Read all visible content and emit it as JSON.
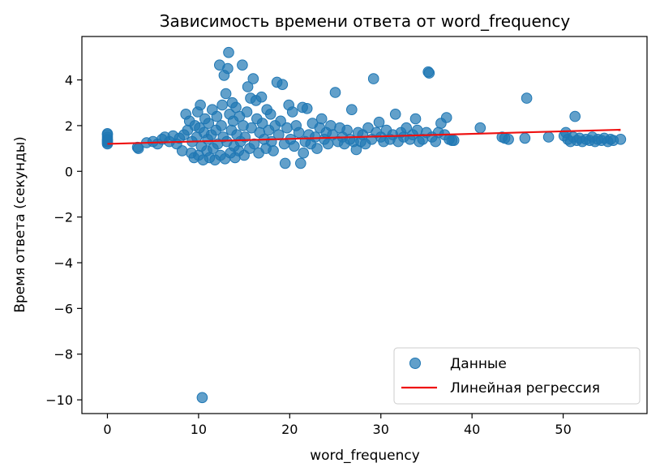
{
  "chart_data": {
    "type": "scatter",
    "title": "Зависимость времени ответа от word_frequency",
    "xlabel": "word_frequency",
    "ylabel": "Время ответа (секунды)",
    "xlim": [
      -2.8,
      59.2
    ],
    "ylim": [
      -10.6,
      5.9
    ],
    "xticks": [
      0,
      10,
      20,
      30,
      40,
      50
    ],
    "yticks": [
      -10,
      -8,
      -6,
      -4,
      -2,
      0,
      2,
      4
    ],
    "grid": false,
    "legend_position": "bottom-right",
    "series": [
      {
        "name": "Данные",
        "kind": "scatter",
        "color": "#1f77b4",
        "points": [
          [
            0,
            1.2
          ],
          [
            0,
            1.3
          ],
          [
            0,
            1.4
          ],
          [
            0,
            1.5
          ],
          [
            0,
            1.6
          ],
          [
            0,
            1.65
          ],
          [
            0,
            1.25
          ],
          [
            0,
            1.35
          ],
          [
            3.3,
            1.05
          ],
          [
            3.4,
            1.0
          ],
          [
            4.3,
            1.25
          ],
          [
            5.0,
            1.3
          ],
          [
            5.5,
            1.2
          ],
          [
            6.0,
            1.4
          ],
          [
            6.3,
            1.5
          ],
          [
            6.8,
            1.3
          ],
          [
            7.2,
            1.55
          ],
          [
            7.6,
            1.2
          ],
          [
            7.9,
            1.45
          ],
          [
            8.2,
            0.9
          ],
          [
            8.4,
            1.6
          ],
          [
            8.6,
            2.5
          ],
          [
            8.8,
            1.8
          ],
          [
            9.0,
            2.2
          ],
          [
            9.2,
            0.8
          ],
          [
            9.3,
            1.3
          ],
          [
            9.5,
            0.6
          ],
          [
            9.6,
            2.0
          ],
          [
            9.8,
            1.5
          ],
          [
            9.9,
            2.6
          ],
          [
            10.0,
            0.7
          ],
          [
            10.1,
            1.9
          ],
          [
            10.2,
            2.9
          ],
          [
            10.3,
            1.1
          ],
          [
            10.5,
            0.5
          ],
          [
            10.6,
            1.7
          ],
          [
            10.7,
            2.3
          ],
          [
            10.9,
            0.9
          ],
          [
            11.0,
            1.4
          ],
          [
            11.1,
            2.1
          ],
          [
            11.2,
            0.6
          ],
          [
            11.4,
            1.6
          ],
          [
            11.5,
            2.7
          ],
          [
            11.6,
            1.0
          ],
          [
            11.8,
            0.5
          ],
          [
            11.9,
            1.8
          ],
          [
            12.0,
            2.4
          ],
          [
            12.1,
            1.2
          ],
          [
            12.3,
            4.65
          ],
          [
            12.4,
            0.7
          ],
          [
            12.5,
            2.0
          ],
          [
            12.6,
            2.9
          ],
          [
            12.7,
            1.5
          ],
          [
            12.8,
            4.2
          ],
          [
            12.9,
            0.55
          ],
          [
            13.0,
            3.4
          ],
          [
            13.1,
            1.3
          ],
          [
            13.2,
            4.5
          ],
          [
            13.3,
            5.2
          ],
          [
            13.4,
            2.5
          ],
          [
            13.5,
            0.8
          ],
          [
            13.6,
            1.8
          ],
          [
            13.7,
            3.0
          ],
          [
            13.8,
            2.2
          ],
          [
            13.9,
            1.1
          ],
          [
            14.0,
            0.6
          ],
          [
            14.1,
            2.8
          ],
          [
            14.2,
            1.6
          ],
          [
            14.4,
            0.9
          ],
          [
            14.5,
            2.4
          ],
          [
            14.6,
            1.3
          ],
          [
            14.8,
            4.65
          ],
          [
            14.9,
            2.0
          ],
          [
            15.0,
            0.7
          ],
          [
            15.1,
            1.5
          ],
          [
            15.3,
            2.6
          ],
          [
            15.4,
            3.7
          ],
          [
            15.6,
            1.0
          ],
          [
            15.7,
            3.2
          ],
          [
            15.8,
            1.9
          ],
          [
            16.0,
            4.05
          ],
          [
            16.1,
            1.2
          ],
          [
            16.3,
            3.1
          ],
          [
            16.4,
            2.3
          ],
          [
            16.6,
            0.8
          ],
          [
            16.7,
            1.7
          ],
          [
            16.9,
            3.25
          ],
          [
            17.0,
            2.1
          ],
          [
            17.2,
            1.4
          ],
          [
            17.4,
            1.0
          ],
          [
            17.5,
            2.7
          ],
          [
            17.7,
            1.8
          ],
          [
            17.9,
            2.5
          ],
          [
            18.0,
            1.3
          ],
          [
            18.2,
            0.9
          ],
          [
            18.4,
            2.0
          ],
          [
            18.6,
            3.9
          ],
          [
            18.8,
            1.6
          ],
          [
            19.0,
            2.2
          ],
          [
            19.2,
            3.8
          ],
          [
            19.4,
            1.2
          ],
          [
            19.5,
            0.35
          ],
          [
            19.7,
            1.9
          ],
          [
            19.9,
            2.9
          ],
          [
            20.1,
            1.4
          ],
          [
            20.3,
            2.6
          ],
          [
            20.5,
            1.1
          ],
          [
            20.7,
            2.0
          ],
          [
            21.0,
            1.7
          ],
          [
            21.2,
            0.35
          ],
          [
            21.4,
            2.8
          ],
          [
            21.5,
            0.8
          ],
          [
            21.7,
            1.3
          ],
          [
            21.9,
            2.75
          ],
          [
            22.1,
            1.6
          ],
          [
            22.3,
            1.2
          ],
          [
            22.5,
            2.1
          ],
          [
            22.8,
            1.5
          ],
          [
            23.0,
            1.0
          ],
          [
            23.3,
            1.9
          ],
          [
            23.5,
            2.3
          ],
          [
            23.8,
            1.4
          ],
          [
            24.0,
            1.7
          ],
          [
            24.2,
            1.2
          ],
          [
            24.5,
            2.0
          ],
          [
            24.7,
            1.6
          ],
          [
            25.0,
            3.45
          ],
          [
            25.3,
            1.3
          ],
          [
            25.5,
            1.9
          ],
          [
            25.8,
            1.5
          ],
          [
            26.0,
            1.2
          ],
          [
            26.3,
            1.8
          ],
          [
            26.6,
            1.4
          ],
          [
            26.8,
            2.7
          ],
          [
            27.0,
            1.3
          ],
          [
            27.3,
            0.95
          ],
          [
            27.5,
            1.7
          ],
          [
            27.8,
            1.3
          ],
          [
            28.0,
            1.6
          ],
          [
            28.3,
            1.2
          ],
          [
            28.6,
            1.9
          ],
          [
            29.0,
            1.4
          ],
          [
            29.2,
            4.05
          ],
          [
            29.5,
            1.7
          ],
          [
            29.8,
            2.15
          ],
          [
            30.0,
            1.5
          ],
          [
            30.3,
            1.3
          ],
          [
            30.6,
            1.8
          ],
          [
            31.0,
            1.4
          ],
          [
            31.3,
            1.6
          ],
          [
            31.6,
            2.5
          ],
          [
            31.9,
            1.3
          ],
          [
            32.2,
            1.7
          ],
          [
            32.5,
            1.5
          ],
          [
            32.8,
            1.9
          ],
          [
            33.2,
            1.4
          ],
          [
            33.5,
            1.6
          ],
          [
            33.8,
            2.3
          ],
          [
            34.0,
            1.8
          ],
          [
            34.2,
            1.3
          ],
          [
            34.6,
            1.4
          ],
          [
            35.0,
            1.7
          ],
          [
            35.2,
            4.35
          ],
          [
            35.3,
            4.3
          ],
          [
            35.6,
            1.5
          ],
          [
            36.0,
            1.3
          ],
          [
            36.3,
            1.7
          ],
          [
            36.6,
            2.1
          ],
          [
            37.0,
            1.6
          ],
          [
            37.2,
            2.35
          ],
          [
            37.5,
            1.4
          ],
          [
            37.8,
            1.35
          ],
          [
            38.0,
            1.35
          ],
          [
            40.9,
            1.9
          ],
          [
            43.3,
            1.5
          ],
          [
            43.6,
            1.45
          ],
          [
            44.0,
            1.4
          ],
          [
            45.8,
            1.45
          ],
          [
            46.0,
            3.2
          ],
          [
            48.4,
            1.5
          ],
          [
            50.1,
            1.55
          ],
          [
            50.3,
            1.7
          ],
          [
            50.5,
            1.4
          ],
          [
            50.8,
            1.3
          ],
          [
            51.1,
            1.5
          ],
          [
            51.3,
            2.4
          ],
          [
            51.5,
            1.35
          ],
          [
            51.8,
            1.45
          ],
          [
            52.1,
            1.3
          ],
          [
            52.5,
            1.4
          ],
          [
            52.9,
            1.35
          ],
          [
            53.2,
            1.5
          ],
          [
            53.5,
            1.3
          ],
          [
            53.8,
            1.4
          ],
          [
            54.2,
            1.35
          ],
          [
            54.5,
            1.45
          ],
          [
            54.9,
            1.3
          ],
          [
            55.2,
            1.4
          ],
          [
            55.5,
            1.35
          ],
          [
            56.3,
            1.4
          ],
          [
            10.4,
            -9.9
          ]
        ]
      },
      {
        "name": "Линейная регрессия",
        "kind": "line",
        "color": "#ee1111",
        "x": [
          0,
          56.3
        ],
        "y": [
          1.2,
          1.82
        ]
      }
    ]
  }
}
